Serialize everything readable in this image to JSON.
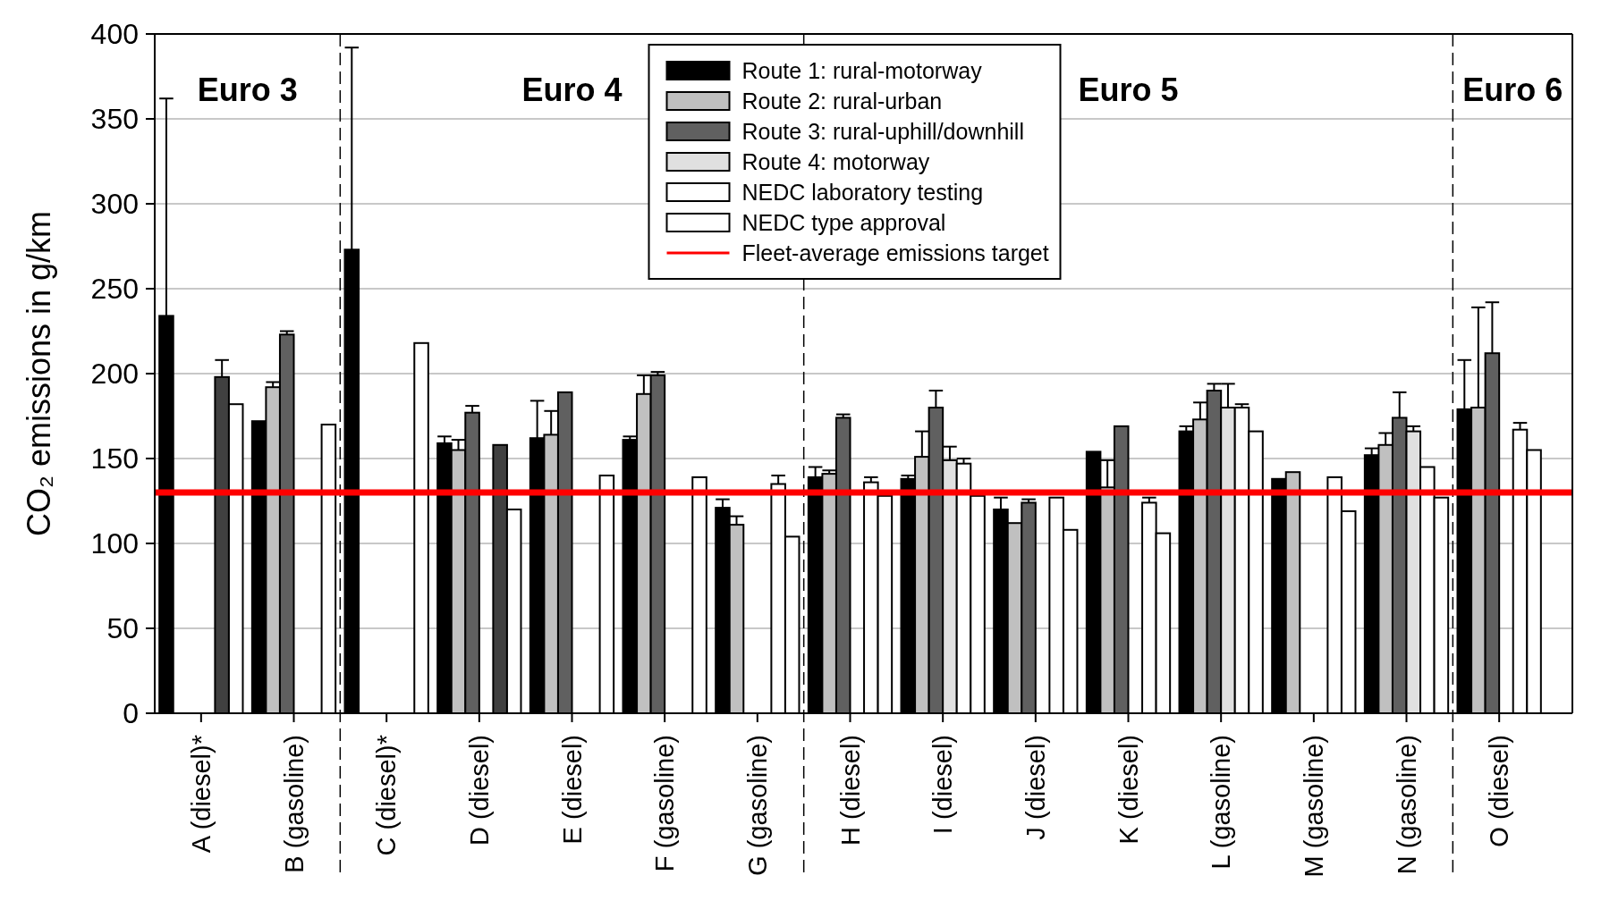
{
  "chart_data": {
    "type": "bar",
    "ylabel": "CO₂ emissions in g/km",
    "categories": [
      "A (diesel)*",
      "B (gasoline)",
      "C (diesel)*",
      "D (diesel)",
      "E (diesel)",
      "F (gasoline)",
      "G (gasoline)",
      "H (diesel)",
      "I (diesel)",
      "J (diesel)",
      "K (diesel)",
      "L (gasoline)",
      "M (gasoline)",
      "N (gasoline)",
      "O (diesel)"
    ],
    "series": [
      {
        "name": "Route 1: rural-motorway",
        "color": "#000000",
        "values": [
          234,
          172,
          273,
          159,
          162,
          161,
          121,
          139,
          138,
          120,
          154,
          166,
          138,
          152,
          179
        ],
        "errors": [
          [
            234,
            362
          ],
          null,
          [
            273,
            392
          ],
          [
            159,
            163
          ],
          [
            162,
            184
          ],
          [
            161,
            163
          ],
          [
            121,
            126
          ],
          [
            139,
            145
          ],
          [
            138,
            140
          ],
          [
            120,
            127
          ],
          null,
          [
            166,
            169
          ],
          null,
          [
            152,
            156
          ],
          [
            179,
            208
          ]
        ]
      },
      {
        "name": "Route 2: rural-urban",
        "color": "#c0c0c0",
        "values": [
          null,
          192,
          null,
          155,
          164,
          188,
          111,
          141,
          151,
          112,
          133,
          173,
          142,
          158,
          180
        ],
        "errors": [
          null,
          [
            192,
            195
          ],
          null,
          [
            155,
            161
          ],
          [
            164,
            178
          ],
          [
            188,
            199
          ],
          [
            111,
            116
          ],
          [
            141,
            143
          ],
          [
            151,
            166
          ],
          null,
          [
            133,
            149
          ],
          [
            173,
            183
          ],
          null,
          [
            158,
            165
          ],
          [
            180,
            239
          ]
        ]
      },
      {
        "name": "Route 3: rural-uphill/downhill",
        "color": "#606060",
        "values": [
          null,
          223,
          null,
          177,
          189,
          199,
          null,
          174,
          180,
          124,
          169,
          190,
          null,
          174,
          212
        ],
        "errors": [
          null,
          [
            223,
            225
          ],
          null,
          [
            177,
            181
          ],
          null,
          [
            199,
            201
          ],
          null,
          [
            174,
            176
          ],
          [
            180,
            190
          ],
          [
            124,
            126
          ],
          null,
          [
            190,
            194
          ],
          null,
          [
            174,
            189
          ],
          [
            212,
            242
          ]
        ]
      },
      {
        "name": "Route 4: motorway",
        "color": "#e0e0e0",
        "values": [
          null,
          null,
          null,
          null,
          null,
          null,
          null,
          null,
          149,
          null,
          null,
          180,
          null,
          166,
          null
        ],
        "errors": [
          null,
          null,
          null,
          null,
          null,
          null,
          null,
          null,
          [
            149,
            157
          ],
          null,
          null,
          [
            180,
            194
          ],
          null,
          [
            166,
            169
          ],
          null
        ]
      },
      {
        "name": "NEDC laboratory testing",
        "color": "#ffffff",
        "colors": [
          "#404040",
          null,
          null,
          "#404040",
          null,
          null,
          "#ffffff",
          "#ffffff",
          "#ffffff",
          "#ffffff",
          "#ffffff",
          "#ffffff",
          "#ffffff",
          "#ffffff",
          "#ffffff"
        ],
        "values": [
          198,
          null,
          null,
          158,
          null,
          null,
          135,
          136,
          147,
          127,
          124,
          180,
          139,
          145,
          167
        ],
        "errors": [
          [
            198,
            208
          ],
          null,
          null,
          null,
          null,
          null,
          [
            135,
            140
          ],
          [
            136,
            139
          ],
          [
            147,
            150
          ],
          null,
          [
            124,
            127
          ],
          [
            180,
            182
          ],
          null,
          null,
          [
            167,
            171
          ]
        ]
      },
      {
        "name": "NEDC type approval",
        "color": "#ffffff",
        "values": [
          182,
          170,
          218,
          120,
          140,
          139,
          104,
          128,
          128,
          108,
          106,
          166,
          119,
          127,
          155
        ]
      }
    ],
    "ylim": [
      0,
      400
    ],
    "yticks": [
      0,
      50,
      100,
      150,
      200,
      250,
      300,
      350,
      400
    ],
    "grid": "y",
    "legend": "top",
    "ref_lines": [
      {
        "axis": "y",
        "value": 130,
        "label": "Fleet-average emissions target",
        "color": "#ff0000"
      }
    ],
    "annotations": [
      "Euro 3",
      "Euro 4",
      "Euro 5",
      "Euro 6"
    ]
  }
}
